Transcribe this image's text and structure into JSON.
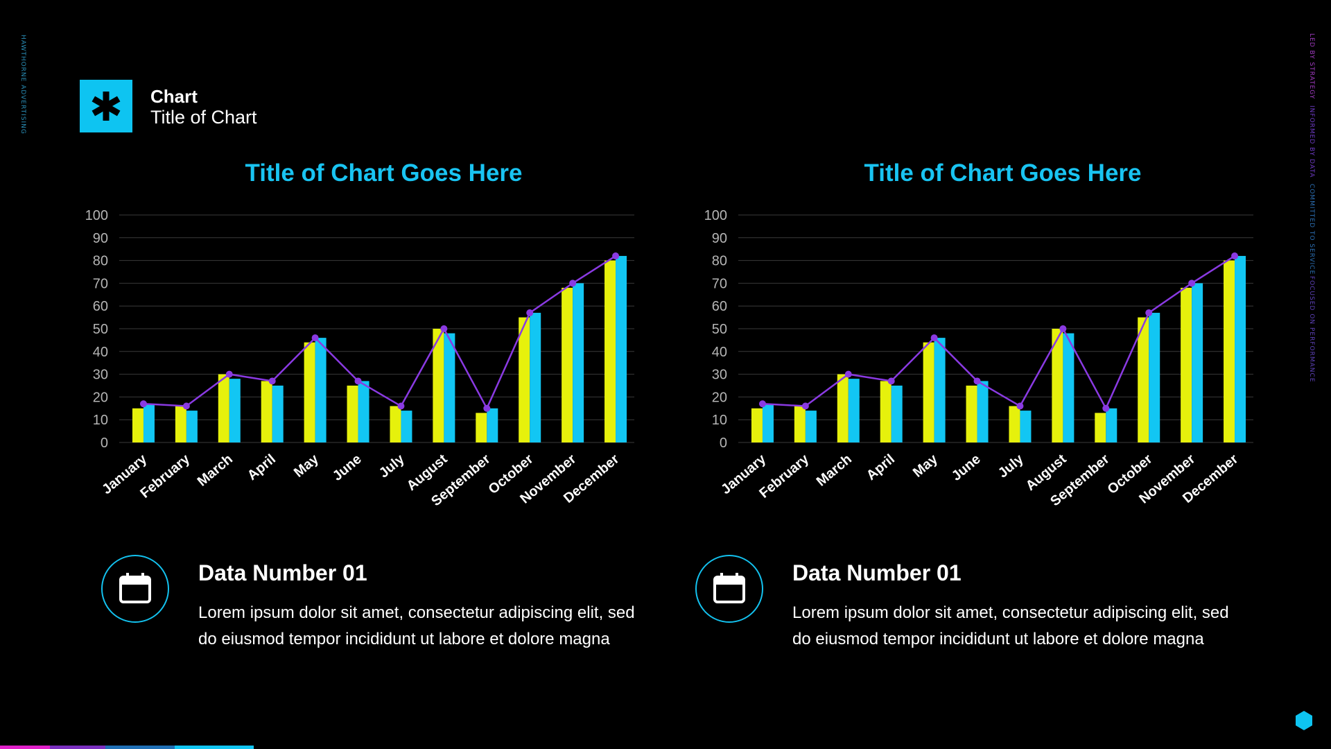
{
  "side": {
    "left_text": "HAWTHORNE ADVERTISING",
    "right_items": [
      "LED BY STRATEGY",
      "INFORMED BY DATA",
      "COMMITTED TO SERVICE",
      "FOCUSED ON PERFORMANCE"
    ]
  },
  "header": {
    "icon": "asterisk-icon",
    "title": "Chart",
    "subtitle": "Title of Chart"
  },
  "colors": {
    "accent": "#0ec4f1",
    "series_a": "#e6f10c",
    "series_b": "#12c6f3",
    "line": "#8a3ae2",
    "grid": "#3a3a3a",
    "strip": [
      "#e020c9",
      "#7a2fbf",
      "#1f6fb5",
      "#12c6f3"
    ]
  },
  "chart_data": [
    {
      "type": "bar",
      "title": "Title of Chart Goes Here",
      "categories": [
        "January",
        "February",
        "March",
        "April",
        "May",
        "June",
        "July",
        "August",
        "September",
        "October",
        "November",
        "December"
      ],
      "series": [
        {
          "type": "bar",
          "values": [
            15,
            16,
            30,
            27,
            44,
            25,
            16,
            50,
            13,
            55,
            68,
            80
          ]
        },
        {
          "type": "bar",
          "values": [
            17,
            14,
            28,
            25,
            46,
            27,
            14,
            48,
            15,
            57,
            70,
            82
          ]
        },
        {
          "type": "line",
          "values": [
            17,
            16,
            30,
            27,
            46,
            27,
            16,
            50,
            15,
            57,
            70,
            82
          ]
        }
      ],
      "ylim": [
        0,
        100
      ],
      "yticks": [
        0,
        10,
        20,
        30,
        40,
        50,
        60,
        70,
        80,
        90,
        100
      ],
      "grid": true,
      "legend": "none"
    },
    {
      "type": "bar",
      "title": "Title of Chart Goes Here",
      "categories": [
        "January",
        "February",
        "March",
        "April",
        "May",
        "June",
        "July",
        "August",
        "September",
        "October",
        "November",
        "December"
      ],
      "series": [
        {
          "type": "bar",
          "values": [
            15,
            16,
            30,
            27,
            44,
            25,
            16,
            50,
            13,
            55,
            68,
            80
          ]
        },
        {
          "type": "bar",
          "values": [
            17,
            14,
            28,
            25,
            46,
            27,
            14,
            48,
            15,
            57,
            70,
            82
          ]
        },
        {
          "type": "line",
          "values": [
            17,
            16,
            30,
            27,
            46,
            27,
            16,
            50,
            15,
            57,
            70,
            82
          ]
        }
      ],
      "ylim": [
        0,
        100
      ],
      "yticks": [
        0,
        10,
        20,
        30,
        40,
        50,
        60,
        70,
        80,
        90,
        100
      ],
      "grid": true,
      "legend": "none"
    }
  ],
  "info_cards": [
    {
      "icon": "calendar-icon",
      "heading": "Data Number 01",
      "body": "Lorem ipsum dolor sit amet, consectetur adipiscing elit, sed do eiusmod tempor incididunt ut labore et dolore magna"
    },
    {
      "icon": "calendar-icon",
      "heading": "Data Number 01",
      "body": "Lorem ipsum dolor sit amet, consectetur adipiscing elit, sed do eiusmod tempor incididunt ut labore et dolore magna"
    }
  ],
  "footer": {
    "icon": "hexagon-icon"
  }
}
